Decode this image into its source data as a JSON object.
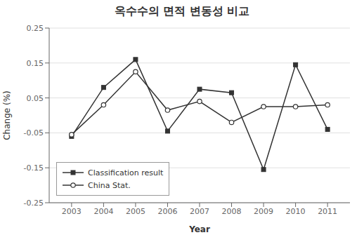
{
  "chart_data": {
    "type": "line",
    "title": "옥수수의 면적 변동성 비교",
    "xlabel": "Year",
    "ylabel": "Change (%)",
    "x": [
      2003,
      2004,
      2005,
      2006,
      2007,
      2008,
      2009,
      2010,
      2011
    ],
    "series": [
      {
        "name": "Classification result",
        "color": "#333333",
        "marker": "square",
        "values": [
          -0.06,
          0.08,
          0.16,
          -0.045,
          0.075,
          0.065,
          -0.155,
          0.145,
          -0.04
        ]
      },
      {
        "name": "China Stat.",
        "color": "#333333",
        "marker": "circle",
        "values": [
          -0.055,
          0.03,
          0.125,
          0.015,
          0.04,
          -0.02,
          0.025,
          0.025,
          0.03
        ]
      }
    ],
    "xlim": [
      2002.3,
      2011.7
    ],
    "xticks": [
      2003,
      2004,
      2005,
      2006,
      2007,
      2008,
      2009,
      2010,
      2011
    ],
    "ylim": [
      -0.25,
      0.25
    ],
    "yticks": [
      -0.25,
      -0.15,
      -0.05,
      0.05,
      0.15,
      0.25
    ],
    "grid": "y",
    "legend": "lower left"
  }
}
